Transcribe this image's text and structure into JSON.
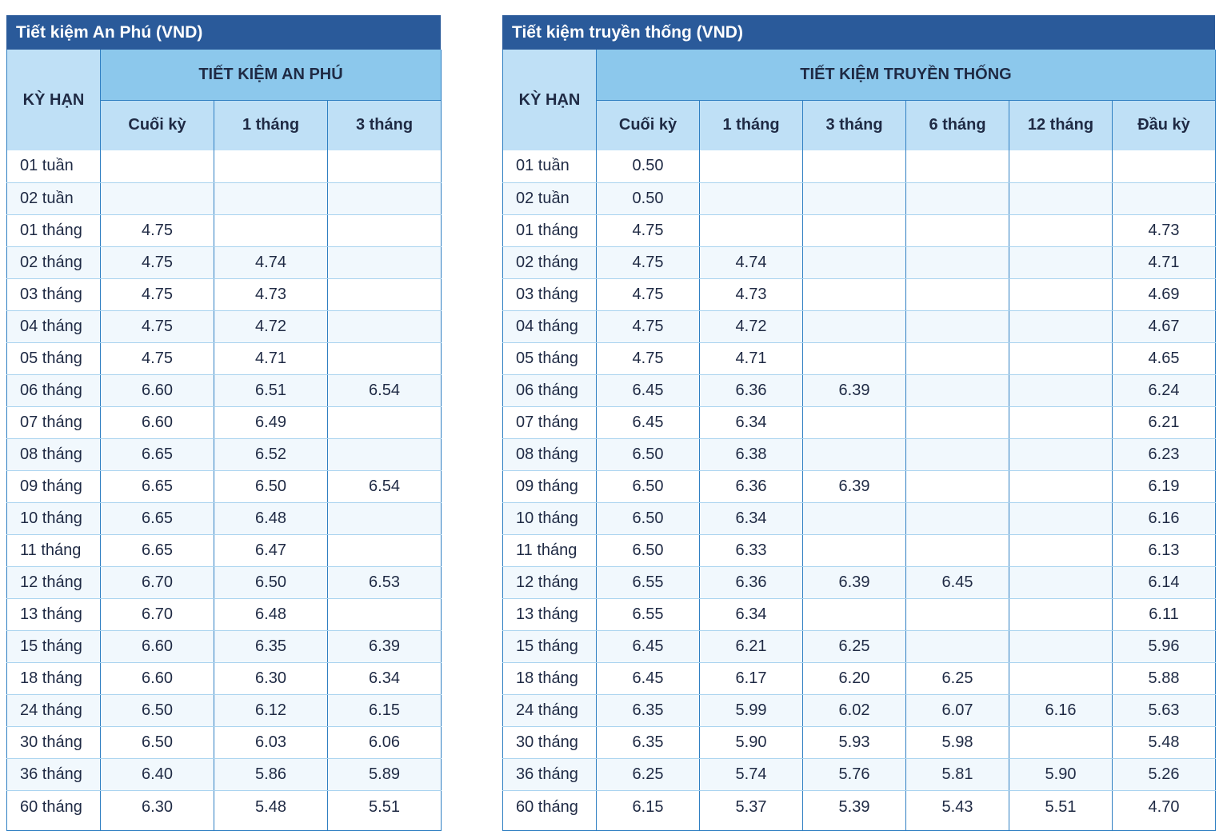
{
  "tables": [
    {
      "title": "Tiết kiệm An Phú (VND)",
      "term_header": "KỲ HẠN",
      "group_header": "TIẾT KIỆM AN PHÚ",
      "columns": [
        "Cuối kỳ",
        "1 tháng",
        "3 tháng"
      ],
      "rows": [
        {
          "term": "01 tuần",
          "values": [
            "",
            "",
            ""
          ]
        },
        {
          "term": "02 tuần",
          "values": [
            "",
            "",
            ""
          ]
        },
        {
          "term": "01 tháng",
          "values": [
            "4.75",
            "",
            ""
          ]
        },
        {
          "term": "02 tháng",
          "values": [
            "4.75",
            "4.74",
            ""
          ]
        },
        {
          "term": "03 tháng",
          "values": [
            "4.75",
            "4.73",
            ""
          ]
        },
        {
          "term": "04 tháng",
          "values": [
            "4.75",
            "4.72",
            ""
          ]
        },
        {
          "term": "05 tháng",
          "values": [
            "4.75",
            "4.71",
            ""
          ]
        },
        {
          "term": "06 tháng",
          "values": [
            "6.60",
            "6.51",
            "6.54"
          ]
        },
        {
          "term": "07 tháng",
          "values": [
            "6.60",
            "6.49",
            ""
          ]
        },
        {
          "term": "08 tháng",
          "values": [
            "6.65",
            "6.52",
            ""
          ]
        },
        {
          "term": "09 tháng",
          "values": [
            "6.65",
            "6.50",
            "6.54"
          ]
        },
        {
          "term": "10 tháng",
          "values": [
            "6.65",
            "6.48",
            ""
          ]
        },
        {
          "term": "11 tháng",
          "values": [
            "6.65",
            "6.47",
            ""
          ]
        },
        {
          "term": "12 tháng",
          "values": [
            "6.70",
            "6.50",
            "6.53"
          ]
        },
        {
          "term": "13 tháng",
          "values": [
            "6.70",
            "6.48",
            ""
          ]
        },
        {
          "term": "15 tháng",
          "values": [
            "6.60",
            "6.35",
            "6.39"
          ]
        },
        {
          "term": "18 tháng",
          "values": [
            "6.60",
            "6.30",
            "6.34"
          ]
        },
        {
          "term": "24 tháng",
          "values": [
            "6.50",
            "6.12",
            "6.15"
          ]
        },
        {
          "term": "30 tháng",
          "values": [
            "6.50",
            "6.03",
            "6.06"
          ]
        },
        {
          "term": "36 tháng",
          "values": [
            "6.40",
            "5.86",
            "5.89"
          ]
        },
        {
          "term": "60 tháng",
          "values": [
            "6.30",
            "5.48",
            "5.51"
          ]
        }
      ]
    },
    {
      "title": "Tiết kiệm truyền thống (VND)",
      "term_header": "KỲ HẠN",
      "group_header": "TIẾT KIỆM TRUYỀN THỐNG",
      "columns": [
        "Cuối kỳ",
        "1 tháng",
        "3 tháng",
        "6 tháng",
        "12 tháng",
        "Đầu kỳ"
      ],
      "rows": [
        {
          "term": "01 tuần",
          "values": [
            "0.50",
            "",
            "",
            "",
            "",
            ""
          ]
        },
        {
          "term": "02 tuần",
          "values": [
            "0.50",
            "",
            "",
            "",
            "",
            ""
          ]
        },
        {
          "term": "01 tháng",
          "values": [
            "4.75",
            "",
            "",
            "",
            "",
            "4.73"
          ]
        },
        {
          "term": "02 tháng",
          "values": [
            "4.75",
            "4.74",
            "",
            "",
            "",
            "4.71"
          ]
        },
        {
          "term": "03 tháng",
          "values": [
            "4.75",
            "4.73",
            "",
            "",
            "",
            "4.69"
          ]
        },
        {
          "term": "04 tháng",
          "values": [
            "4.75",
            "4.72",
            "",
            "",
            "",
            "4.67"
          ]
        },
        {
          "term": "05 tháng",
          "values": [
            "4.75",
            "4.71",
            "",
            "",
            "",
            "4.65"
          ]
        },
        {
          "term": "06 tháng",
          "values": [
            "6.45",
            "6.36",
            "6.39",
            "",
            "",
            "6.24"
          ]
        },
        {
          "term": "07 tháng",
          "values": [
            "6.45",
            "6.34",
            "",
            "",
            "",
            "6.21"
          ]
        },
        {
          "term": "08 tháng",
          "values": [
            "6.50",
            "6.38",
            "",
            "",
            "",
            "6.23"
          ]
        },
        {
          "term": "09 tháng",
          "values": [
            "6.50",
            "6.36",
            "6.39",
            "",
            "",
            "6.19"
          ]
        },
        {
          "term": "10 tháng",
          "values": [
            "6.50",
            "6.34",
            "",
            "",
            "",
            "6.16"
          ]
        },
        {
          "term": "11 tháng",
          "values": [
            "6.50",
            "6.33",
            "",
            "",
            "",
            "6.13"
          ]
        },
        {
          "term": "12 tháng",
          "values": [
            "6.55",
            "6.36",
            "6.39",
            "6.45",
            "",
            "6.14"
          ]
        },
        {
          "term": "13 tháng",
          "values": [
            "6.55",
            "6.34",
            "",
            "",
            "",
            "6.11"
          ]
        },
        {
          "term": "15 tháng",
          "values": [
            "6.45",
            "6.21",
            "6.25",
            "",
            "",
            "5.96"
          ]
        },
        {
          "term": "18 tháng",
          "values": [
            "6.45",
            "6.17",
            "6.20",
            "6.25",
            "",
            "5.88"
          ]
        },
        {
          "term": "24 tháng",
          "values": [
            "6.35",
            "5.99",
            "6.02",
            "6.07",
            "6.16",
            "5.63"
          ]
        },
        {
          "term": "30 tháng",
          "values": [
            "6.35",
            "5.90",
            "5.93",
            "5.98",
            "",
            "5.48"
          ]
        },
        {
          "term": "36 tháng",
          "values": [
            "6.25",
            "5.74",
            "5.76",
            "5.81",
            "5.90",
            "5.26"
          ]
        },
        {
          "term": "60 tháng",
          "values": [
            "6.15",
            "5.37",
            "5.39",
            "5.43",
            "5.51",
            "4.70"
          ]
        }
      ]
    }
  ]
}
